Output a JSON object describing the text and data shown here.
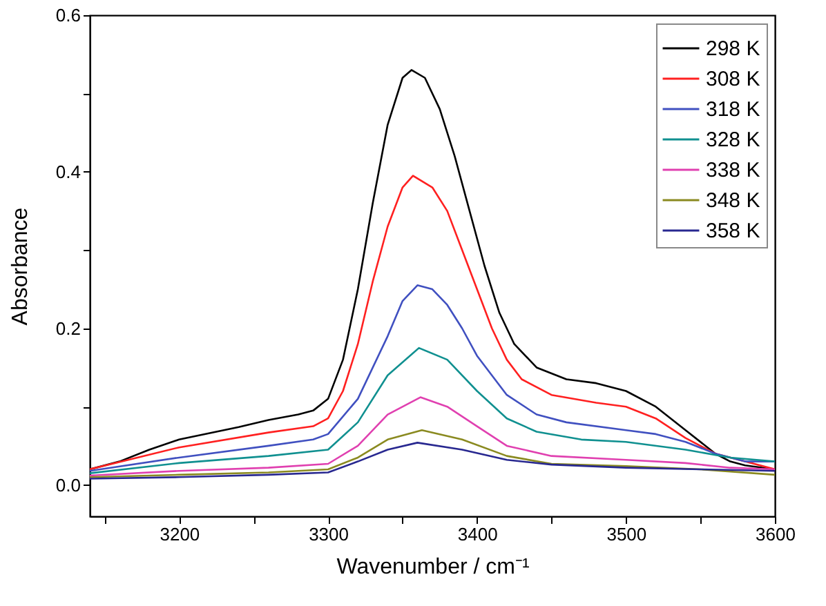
{
  "chart_data": {
    "type": "line",
    "xlabel": "Wavenumber / cm⁻¹",
    "ylabel": "Absorbance",
    "xlim": [
      3140,
      3600
    ],
    "ylim": [
      -0.04,
      0.6
    ],
    "xticks": [
      {
        "value": 3150,
        "label": null
      },
      3200,
      {
        "value": 3250,
        "label": null
      },
      3300,
      {
        "value": 3350,
        "label": null
      },
      3400,
      {
        "value": 3450,
        "label": null
      },
      3500,
      {
        "value": 3550,
        "label": null
      },
      3600
    ],
    "yticks": [
      {
        "value": 0,
        "label": "0.0"
      },
      {
        "value": 0.1,
        "label": null
      },
      0.2,
      {
        "value": 0.3,
        "label": null
      },
      0.4,
      {
        "value": 0.5,
        "label": null
      },
      0.6
    ],
    "grid": false,
    "legend": "top right",
    "line_style": "solid",
    "marker": "none",
    "series": [
      {
        "name": "298 K",
        "color": "#000000",
        "x": [
          3140,
          3160,
          3180,
          3200,
          3220,
          3240,
          3260,
          3280,
          3290,
          3300,
          3310,
          3320,
          3330,
          3340,
          3350,
          3356,
          3365,
          3375,
          3385,
          3395,
          3405,
          3415,
          3425,
          3440,
          3460,
          3480,
          3500,
          3520,
          3540,
          3560,
          3570,
          3580,
          3600
        ],
        "values": [
          0.02,
          0.03,
          0.045,
          0.058,
          0.066,
          0.074,
          0.083,
          0.09,
          0.095,
          0.11,
          0.16,
          0.25,
          0.36,
          0.46,
          0.52,
          0.53,
          0.52,
          0.48,
          0.42,
          0.35,
          0.28,
          0.22,
          0.18,
          0.15,
          0.135,
          0.13,
          0.12,
          0.1,
          0.07,
          0.04,
          0.03,
          0.025,
          0.02
        ]
      },
      {
        "name": "308 K",
        "color": "#ff2020",
        "x": [
          3140,
          3200,
          3260,
          3290,
          3300,
          3310,
          3320,
          3330,
          3340,
          3350,
          3357,
          3370,
          3380,
          3390,
          3400,
          3410,
          3420,
          3430,
          3450,
          3480,
          3500,
          3520,
          3540,
          3560,
          3580,
          3600
        ],
        "values": [
          0.02,
          0.048,
          0.067,
          0.075,
          0.085,
          0.12,
          0.18,
          0.26,
          0.33,
          0.38,
          0.395,
          0.38,
          0.35,
          0.3,
          0.25,
          0.2,
          0.16,
          0.135,
          0.115,
          0.105,
          0.1,
          0.085,
          0.06,
          0.04,
          0.03,
          0.02
        ]
      },
      {
        "name": "318 K",
        "color": "#4050c0",
        "x": [
          3140,
          3200,
          3260,
          3290,
          3300,
          3320,
          3340,
          3350,
          3360,
          3370,
          3380,
          3390,
          3400,
          3420,
          3440,
          3460,
          3500,
          3520,
          3540,
          3560,
          3580,
          3600
        ],
        "values": [
          0.018,
          0.035,
          0.05,
          0.058,
          0.065,
          0.11,
          0.19,
          0.235,
          0.255,
          0.25,
          0.23,
          0.2,
          0.165,
          0.115,
          0.09,
          0.08,
          0.07,
          0.065,
          0.055,
          0.04,
          0.03,
          0.03
        ]
      },
      {
        "name": "328 K",
        "color": "#109090",
        "x": [
          3140,
          3200,
          3260,
          3300,
          3320,
          3340,
          3361,
          3380,
          3400,
          3420,
          3440,
          3470,
          3500,
          3540,
          3570,
          3600
        ],
        "values": [
          0.015,
          0.028,
          0.037,
          0.045,
          0.08,
          0.14,
          0.175,
          0.16,
          0.12,
          0.085,
          0.068,
          0.058,
          0.055,
          0.045,
          0.035,
          0.03
        ]
      },
      {
        "name": "338 K",
        "color": "#e040b0",
        "x": [
          3140,
          3200,
          3260,
          3300,
          3320,
          3340,
          3362,
          3380,
          3400,
          3420,
          3450,
          3500,
          3540,
          3570,
          3600
        ],
        "values": [
          0.012,
          0.018,
          0.022,
          0.027,
          0.05,
          0.09,
          0.112,
          0.1,
          0.075,
          0.05,
          0.037,
          0.032,
          0.028,
          0.022,
          0.02
        ]
      },
      {
        "name": "348 K",
        "color": "#8a8a20",
        "x": [
          3140,
          3200,
          3260,
          3300,
          3320,
          3340,
          3363,
          3390,
          3420,
          3450,
          3500,
          3550,
          3600
        ],
        "values": [
          0.01,
          0.013,
          0.016,
          0.02,
          0.035,
          0.058,
          0.07,
          0.058,
          0.037,
          0.027,
          0.024,
          0.02,
          0.013
        ]
      },
      {
        "name": "358 K",
        "color": "#282890",
        "x": [
          3140,
          3200,
          3260,
          3300,
          3320,
          3340,
          3360,
          3390,
          3420,
          3450,
          3500,
          3550,
          3600
        ],
        "values": [
          0.008,
          0.01,
          0.013,
          0.016,
          0.03,
          0.045,
          0.054,
          0.045,
          0.032,
          0.026,
          0.022,
          0.02,
          0.018
        ]
      }
    ]
  }
}
